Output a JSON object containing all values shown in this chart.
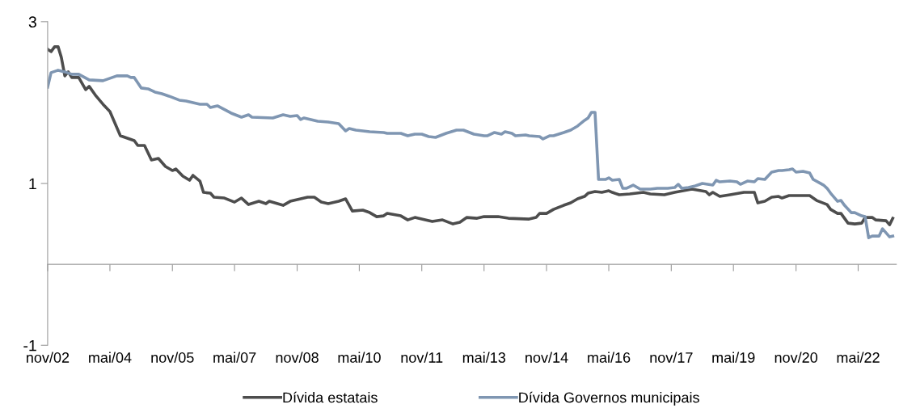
{
  "chart_data": {
    "type": "line",
    "xlim": [
      "2002-11",
      "2023-04"
    ],
    "xticks": [
      {
        "value": "2002-11",
        "label": "nov/02"
      },
      {
        "value": "2004-05",
        "label": "mai/04"
      },
      {
        "value": "2005-11",
        "label": "nov/05"
      },
      {
        "value": "2007-05",
        "label": "mai/07"
      },
      {
        "value": "2008-11",
        "label": "nov/08"
      },
      {
        "value": "2010-05",
        "label": "mai/10"
      },
      {
        "value": "2011-11",
        "label": "nov/11"
      },
      {
        "value": "2013-05",
        "label": "mai/13"
      },
      {
        "value": "2014-11",
        "label": "nov/14"
      },
      {
        "value": "2016-05",
        "label": "mai/16"
      },
      {
        "value": "2017-11",
        "label": "nov/17"
      },
      {
        "value": "2019-05",
        "label": "mai/19"
      },
      {
        "value": "2020-11",
        "label": "nov/20"
      },
      {
        "value": "2022-05",
        "label": "mai/22"
      }
    ],
    "ylim": [
      -1,
      3
    ],
    "yticks": [
      -1,
      1,
      3
    ],
    "grid": false,
    "legend": "bottom",
    "marker": "none",
    "line_style": "solid",
    "series": [
      {
        "name": "Dívida estatais",
        "color": "#4d4d4d",
        "x": [
          "2002-11",
          "2002-12",
          "2003-01",
          "2003-02",
          "2003-03",
          "2003-04",
          "2003-05",
          "2003-06",
          "2003-08",
          "2003-10",
          "2003-11",
          "2004-01",
          "2004-03",
          "2004-05",
          "2004-08",
          "2004-12",
          "2005-01",
          "2005-03",
          "2005-05",
          "2005-07",
          "2005-09",
          "2005-11",
          "2005-12",
          "2006-02",
          "2006-04",
          "2006-05",
          "2006-07",
          "2006-08",
          "2006-10",
          "2006-11",
          "2007-02",
          "2007-05",
          "2007-07",
          "2007-09",
          "2007-12",
          "2008-02",
          "2008-03",
          "2008-07",
          "2008-09",
          "2008-11",
          "2009-02",
          "2009-04",
          "2009-06",
          "2009-08",
          "2009-11",
          "2010-01",
          "2010-03",
          "2010-06",
          "2010-08",
          "2010-10",
          "2010-12",
          "2011-01",
          "2011-05",
          "2011-07",
          "2011-09",
          "2011-12",
          "2012-02",
          "2012-05",
          "2012-08",
          "2012-10",
          "2012-12",
          "2013-03",
          "2013-05",
          "2013-09",
          "2013-12",
          "2014-06",
          "2014-08",
          "2014-09",
          "2014-11",
          "2015-01",
          "2015-04",
          "2015-06",
          "2015-08",
          "2015-10",
          "2015-11",
          "2016-01",
          "2016-03",
          "2016-05",
          "2016-06",
          "2016-08",
          "2016-11",
          "2017-03",
          "2017-05",
          "2017-09",
          "2017-12",
          "2018-05",
          "2018-09",
          "2018-10",
          "2018-11",
          "2019-01",
          "2019-04",
          "2019-08",
          "2019-11",
          "2019-12",
          "2020-02",
          "2020-04",
          "2020-06",
          "2020-07",
          "2020-09",
          "2020-10",
          "2021-01",
          "2021-03",
          "2021-05",
          "2021-08",
          "2021-09",
          "2021-11",
          "2021-12",
          "2022-02",
          "2022-04",
          "2022-06",
          "2022-07",
          "2022-09",
          "2022-10",
          "2023-01",
          "2023-02",
          "2023-03"
        ],
        "values": [
          2.66,
          2.63,
          2.69,
          2.69,
          2.56,
          2.33,
          2.38,
          2.31,
          2.31,
          2.16,
          2.2,
          2.08,
          1.98,
          1.89,
          1.59,
          1.53,
          1.47,
          1.47,
          1.29,
          1.31,
          1.21,
          1.16,
          1.18,
          1.09,
          1.04,
          1.1,
          1.03,
          0.89,
          0.88,
          0.83,
          0.82,
          0.77,
          0.82,
          0.74,
          0.78,
          0.75,
          0.78,
          0.73,
          0.78,
          0.8,
          0.83,
          0.83,
          0.77,
          0.75,
          0.78,
          0.81,
          0.66,
          0.67,
          0.64,
          0.59,
          0.6,
          0.63,
          0.6,
          0.55,
          0.58,
          0.55,
          0.53,
          0.55,
          0.5,
          0.52,
          0.58,
          0.57,
          0.59,
          0.59,
          0.57,
          0.56,
          0.58,
          0.63,
          0.63,
          0.68,
          0.73,
          0.76,
          0.81,
          0.84,
          0.88,
          0.9,
          0.89,
          0.91,
          0.89,
          0.86,
          0.87,
          0.89,
          0.87,
          0.86,
          0.89,
          0.93,
          0.9,
          0.86,
          0.89,
          0.84,
          0.86,
          0.89,
          0.89,
          0.76,
          0.78,
          0.83,
          0.84,
          0.82,
          0.85,
          0.85,
          0.85,
          0.85,
          0.79,
          0.74,
          0.68,
          0.63,
          0.63,
          0.51,
          0.5,
          0.51,
          0.58,
          0.58,
          0.55,
          0.54,
          0.49,
          0.57
        ]
      },
      {
        "name": "Dívida Governos municipais",
        "color": "#7f96b2",
        "x": [
          "2002-11",
          "2002-12",
          "2003-02",
          "2003-04",
          "2003-06",
          "2003-08",
          "2003-11",
          "2004-03",
          "2004-07",
          "2004-10",
          "2004-11",
          "2004-12",
          "2005-02",
          "2005-04",
          "2005-06",
          "2005-08",
          "2005-10",
          "2006-01",
          "2006-03",
          "2006-07",
          "2006-09",
          "2006-10",
          "2006-12",
          "2007-04",
          "2007-07",
          "2007-09",
          "2007-10",
          "2008-04",
          "2008-07",
          "2008-09",
          "2008-11",
          "2008-12",
          "2009-01",
          "2009-05",
          "2009-08",
          "2009-11",
          "2010-01",
          "2010-02",
          "2010-04",
          "2010-08",
          "2010-12",
          "2011-01",
          "2011-05",
          "2011-07",
          "2011-09",
          "2011-11",
          "2012-01",
          "2012-03",
          "2012-06",
          "2012-09",
          "2012-11",
          "2013-02",
          "2013-05",
          "2013-06",
          "2013-08",
          "2013-10",
          "2013-11",
          "2014-01",
          "2014-02",
          "2014-05",
          "2014-06",
          "2014-09",
          "2014-10",
          "2014-12",
          "2015-01",
          "2015-04",
          "2015-06",
          "2015-08",
          "2015-10",
          "2015-11",
          "2015-12",
          "2016-01",
          "2016-02",
          "2016-04",
          "2016-05",
          "2016-06",
          "2016-08",
          "2016-09",
          "2016-10",
          "2016-12",
          "2017-02",
          "2017-05",
          "2017-07",
          "2017-10",
          "2017-12",
          "2018-01",
          "2018-02",
          "2018-04",
          "2018-06",
          "2018-08",
          "2018-11",
          "2018-12",
          "2019-01",
          "2019-04",
          "2019-06",
          "2019-07",
          "2019-09",
          "2019-11",
          "2019-12",
          "2020-02",
          "2020-04",
          "2020-06",
          "2020-07",
          "2020-09",
          "2020-10",
          "2020-11",
          "2021-01",
          "2021-03",
          "2021-04",
          "2021-07",
          "2021-08",
          "2021-09",
          "2021-11",
          "2021-12",
          "2022-01",
          "2022-03",
          "2022-04",
          "2022-06",
          "2022-07",
          "2022-08",
          "2022-09",
          "2022-11",
          "2022-12",
          "2023-02",
          "2023-03"
        ],
        "values": [
          2.19,
          2.37,
          2.4,
          2.38,
          2.35,
          2.35,
          2.28,
          2.27,
          2.33,
          2.33,
          2.31,
          2.31,
          2.18,
          2.17,
          2.13,
          2.11,
          2.08,
          2.03,
          2.02,
          1.98,
          1.98,
          1.94,
          1.96,
          1.87,
          1.82,
          1.85,
          1.82,
          1.81,
          1.85,
          1.83,
          1.84,
          1.79,
          1.81,
          1.77,
          1.76,
          1.74,
          1.65,
          1.68,
          1.66,
          1.64,
          1.63,
          1.62,
          1.62,
          1.59,
          1.61,
          1.61,
          1.58,
          1.57,
          1.62,
          1.66,
          1.66,
          1.61,
          1.59,
          1.59,
          1.63,
          1.61,
          1.64,
          1.62,
          1.59,
          1.6,
          1.59,
          1.58,
          1.55,
          1.59,
          1.59,
          1.63,
          1.66,
          1.71,
          1.78,
          1.81,
          1.88,
          1.88,
          1.05,
          1.05,
          1.07,
          1.04,
          1.05,
          0.94,
          0.94,
          0.98,
          0.93,
          0.93,
          0.94,
          0.94,
          0.95,
          0.99,
          0.94,
          0.95,
          0.97,
          1.0,
          0.98,
          1.04,
          1.02,
          1.03,
          1.02,
          0.99,
          1.03,
          1.02,
          1.06,
          1.05,
          1.14,
          1.16,
          1.16,
          1.17,
          1.18,
          1.14,
          1.15,
          1.13,
          1.05,
          0.98,
          0.94,
          0.88,
          0.78,
          0.79,
          0.73,
          0.64,
          0.64,
          0.6,
          0.59,
          0.33,
          0.35,
          0.35,
          0.44,
          0.34,
          0.35
        ]
      }
    ]
  }
}
